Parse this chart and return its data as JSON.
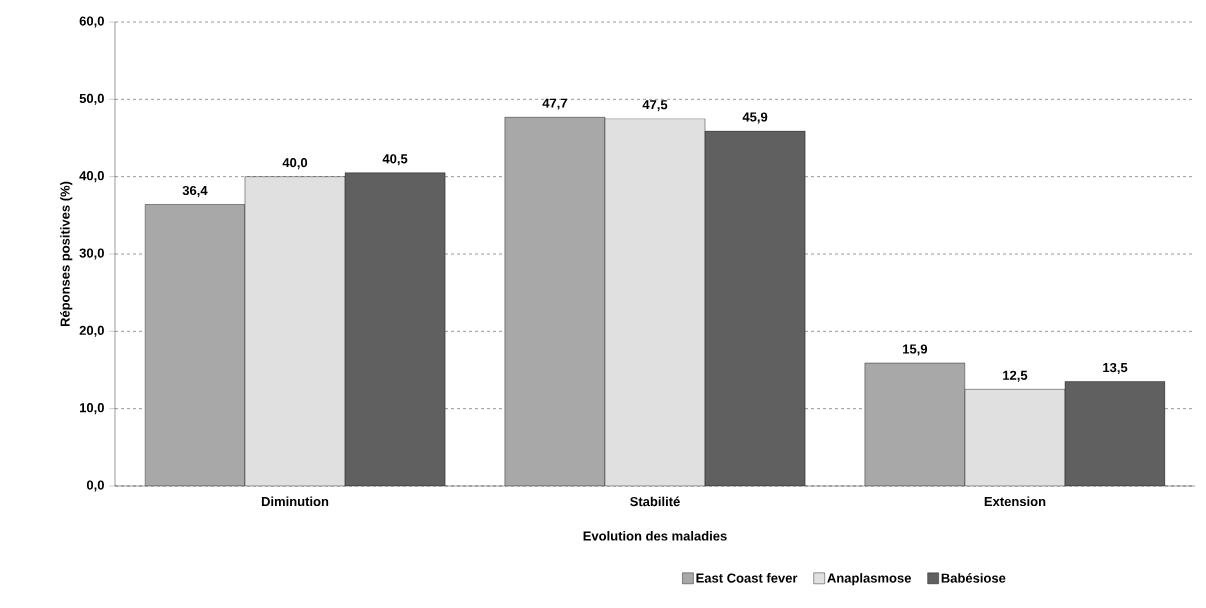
{
  "chart_data": {
    "type": "bar",
    "xlabel": "Evolution des maladies",
    "ylabel": "Réponses positives (%)",
    "categories": [
      "Diminution",
      "Stabilité",
      "Extension"
    ],
    "series": [
      {
        "name": "East Coast fever",
        "color": "#a8a8a8",
        "values": [
          36.4,
          47.7,
          15.9
        ],
        "value_labels": [
          "36,4",
          "47,7",
          "15,9"
        ]
      },
      {
        "name": "Anaplasmose",
        "color": "#e0e0e0",
        "values": [
          40.0,
          47.5,
          12.5
        ],
        "value_labels": [
          "40,0",
          "47,5",
          "12,5"
        ]
      },
      {
        "name": "Babésiose",
        "color": "#606060",
        "values": [
          40.5,
          45.9,
          13.5
        ],
        "value_labels": [
          "40,5",
          "45,9",
          "13,5"
        ]
      }
    ],
    "ylim": [
      0,
      60
    ],
    "yticks": [
      {
        "value": 0,
        "label": "0,0"
      },
      {
        "value": 10,
        "label": "10,0"
      },
      {
        "value": 20,
        "label": "20,0"
      },
      {
        "value": 30,
        "label": "30,0"
      },
      {
        "value": 40,
        "label": "40,0"
      },
      {
        "value": 50,
        "label": "50,0"
      },
      {
        "value": 60,
        "label": "60,0"
      }
    ],
    "grid": "y",
    "legend": "bottom"
  }
}
